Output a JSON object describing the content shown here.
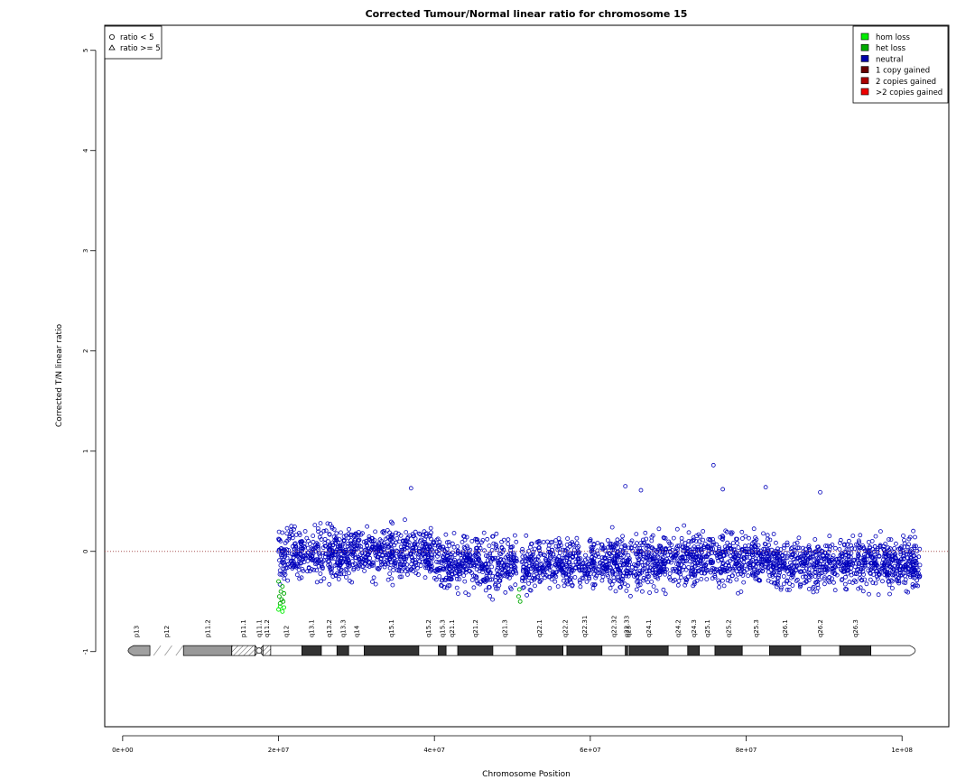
{
  "chart_data": {
    "type": "scatter",
    "title": "Corrected Tumour/Normal linear ratio for chromosome  15",
    "xlabel": "Chromosome Position",
    "ylabel": "Corrected T/N linear ratio",
    "xlim": [
      -2300000,
      106000000
    ],
    "ylim": [
      -1.75,
      5.25
    ],
    "x_ticks": [
      0,
      20000000,
      40000000,
      60000000,
      80000000,
      100000000
    ],
    "x_tick_labels": [
      "0e+00",
      "2e+07",
      "4e+07",
      "6e+07",
      "8e+07",
      "1e+08"
    ],
    "y_ticks": [
      -1,
      0,
      1,
      2,
      3,
      4,
      5
    ],
    "y_tick_labels": [
      "-1",
      "0",
      "1",
      "2",
      "3",
      "4",
      "5"
    ],
    "reference_line_y": 0,
    "shape_legend": {
      "position": "top-left",
      "items": [
        "ratio < 5",
        "ratio >= 5"
      ]
    },
    "state_legend": {
      "position": "top-right",
      "items": [
        {
          "label": "hom loss",
          "color": "#00ee00"
        },
        {
          "label": "het loss",
          "color": "#00aa00"
        },
        {
          "label": "neutral",
          "color": "#0000aa"
        },
        {
          "label": "1 copy gained",
          "color": "#660000"
        },
        {
          "label": "2 copies gained",
          "color": "#aa0000"
        },
        {
          "label": ">2 copies gained",
          "color": "#ee0000"
        }
      ]
    },
    "series": [
      {
        "name": "neutral",
        "color": "#0000bb",
        "segments": [
          {
            "x": [
              20000000,
              21200000
            ],
            "mean": -0.05,
            "spread": 0.25
          },
          {
            "x": [
              21200000,
              40000000
            ],
            "mean": -0.02,
            "spread": 0.22
          },
          {
            "x": [
              40000000,
              50600000
            ],
            "mean": -0.12,
            "spread": 0.22
          },
          {
            "x": [
              51200000,
              70000000
            ],
            "mean": -0.12,
            "spread": 0.22
          },
          {
            "x": [
              70000000,
              83000000
            ],
            "mean": -0.07,
            "spread": 0.22
          },
          {
            "x": [
              83000000,
              102400000
            ],
            "mean": -0.12,
            "spread": 0.22
          }
        ],
        "outliers": [
          [
            75800000,
            0.86
          ],
          [
            64500000,
            0.65
          ],
          [
            82500000,
            0.64
          ],
          [
            77000000,
            0.62
          ],
          [
            37000000,
            0.63
          ],
          [
            66500000,
            0.61
          ],
          [
            89500000,
            0.59
          ]
        ]
      },
      {
        "name": "het loss",
        "color": "#00aa00",
        "points": [
          [
            20000000,
            -0.3
          ],
          [
            20100000,
            -0.45
          ],
          [
            20200000,
            -0.52
          ],
          [
            20300000,
            -0.4
          ],
          [
            20400000,
            -0.48
          ],
          [
            20500000,
            -0.35
          ],
          [
            20600000,
            -0.5
          ],
          [
            20700000,
            -0.42
          ],
          [
            50800000,
            -0.45
          ],
          [
            50900000,
            -0.38
          ],
          [
            51000000,
            -0.5
          ]
        ]
      },
      {
        "name": "hom loss",
        "color": "#00ee00",
        "points": [
          [
            20000000,
            -0.58
          ],
          [
            20200000,
            -0.55
          ],
          [
            20500000,
            -0.6
          ],
          [
            20700000,
            -0.56
          ]
        ]
      }
    ],
    "ideogram": {
      "bands": [
        {
          "name": "p13",
          "start": 0,
          "end": 3500000,
          "stain": "gvar"
        },
        {
          "name": "p12",
          "start": 3500000,
          "end": 7800000,
          "stain": "stalk"
        },
        {
          "name": "p11.2",
          "start": 7800000,
          "end": 14000000,
          "stain": "gvar2"
        },
        {
          "name": "p11.1",
          "start": 14000000,
          "end": 17000000,
          "stain": "var"
        },
        {
          "name": "q11.1",
          "start": 17000000,
          "end": 18000000,
          "stain": "cen"
        },
        {
          "name": "q11.2",
          "start": 18000000,
          "end": 19000000,
          "stain": "var"
        },
        {
          "name": "q12",
          "start": 19000000,
          "end": 23000000,
          "stain": "gneg"
        },
        {
          "name": "q13.1",
          "start": 23000000,
          "end": 25500000,
          "stain": "gpos"
        },
        {
          "name": "q13.2",
          "start": 25500000,
          "end": 27500000,
          "stain": "gneg"
        },
        {
          "name": "q13.3",
          "start": 27500000,
          "end": 29000000,
          "stain": "gpos"
        },
        {
          "name": "q14",
          "start": 29000000,
          "end": 31000000,
          "stain": "gneg"
        },
        {
          "name": "q15.1",
          "start": 31000000,
          "end": 38000000,
          "stain": "gpos"
        },
        {
          "name": "q15.2",
          "start": 38000000,
          "end": 40500000,
          "stain": "gneg"
        },
        {
          "name": "q15.3",
          "start": 40500000,
          "end": 41500000,
          "stain": "gpos"
        },
        {
          "name": "q21.1",
          "start": 41500000,
          "end": 43000000,
          "stain": "gneg"
        },
        {
          "name": "q21.2",
          "start": 43000000,
          "end": 47500000,
          "stain": "gpos"
        },
        {
          "name": "q21.3",
          "start": 47500000,
          "end": 50500000,
          "stain": "gneg"
        },
        {
          "name": "q22.1",
          "start": 50500000,
          "end": 56500000,
          "stain": "gpos"
        },
        {
          "name": "q22.2",
          "start": 56500000,
          "end": 57000000,
          "stain": "gneg"
        },
        {
          "name": "q22.31",
          "start": 57000000,
          "end": 61500000,
          "stain": "gpos"
        },
        {
          "name": "q22.32",
          "start": 61500000,
          "end": 64500000,
          "stain": "gneg"
        },
        {
          "name": "q22.33",
          "start": 64500000,
          "end": 64800000,
          "stain": "gpos"
        },
        {
          "name": "q23",
          "start": 64800000,
          "end": 65000000,
          "stain": "gneg"
        },
        {
          "name": "q24.1",
          "start": 65000000,
          "end": 70000000,
          "stain": "gpos"
        },
        {
          "name": "q24.2",
          "start": 70000000,
          "end": 72500000,
          "stain": "gneg"
        },
        {
          "name": "q24.3",
          "start": 72500000,
          "end": 74000000,
          "stain": "gpos"
        },
        {
          "name": "q25.1",
          "start": 74000000,
          "end": 76000000,
          "stain": "gneg"
        },
        {
          "name": "q25.2",
          "start": 76000000,
          "end": 79500000,
          "stain": "gpos"
        },
        {
          "name": "q25.3",
          "start": 79500000,
          "end": 83000000,
          "stain": "gneg"
        },
        {
          "name": "q26.1",
          "start": 83000000,
          "end": 87000000,
          "stain": "gpos"
        },
        {
          "name": "q26.2",
          "start": 87000000,
          "end": 92000000,
          "stain": "gneg"
        },
        {
          "name": "q26.3",
          "start": 92000000,
          "end": 96000000,
          "stain": "gpos"
        },
        {
          "name": "",
          "start": 96000000,
          "end": 102400000,
          "stain": "gneg"
        }
      ]
    }
  }
}
